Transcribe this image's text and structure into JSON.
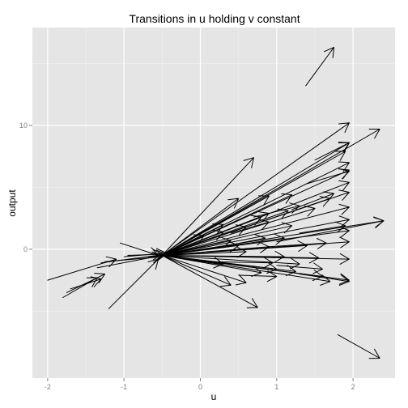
{
  "chart_data": {
    "type": "vector-field",
    "title": "Transitions in u holding v constant",
    "xlabel": "u",
    "ylabel": "output",
    "xlim": [
      -2.2,
      2.55
    ],
    "ylim": [
      -10.4,
      17.9
    ],
    "x_ticks": [
      -2,
      -1,
      0,
      1,
      2
    ],
    "x_tick_labels": [
      "-2",
      "-1",
      "0",
      "1",
      "2"
    ],
    "y_ticks": [
      0,
      10
    ],
    "y_tick_labels": [
      "0",
      "10"
    ],
    "panel_background": "#e5e5e5",
    "grid": true,
    "grid_color": "#ffffff",
    "arrow_color": "#000000",
    "arrows": [
      {
        "x0": 1.38,
        "y0": 13.2,
        "x1": 1.75,
        "y1": 16.3
      },
      {
        "x0": 1.8,
        "y0": -6.9,
        "x1": 2.35,
        "y1": -8.8
      },
      {
        "x0": -2.0,
        "y0": -2.5,
        "x1": -1.1,
        "y1": -0.8
      },
      {
        "x0": -1.8,
        "y0": -3.9,
        "x1": -1.35,
        "y1": -2.3
      },
      {
        "x0": -1.75,
        "y0": -3.5,
        "x1": -1.25,
        "y1": -2.0
      },
      {
        "x0": -1.7,
        "y0": -3.2,
        "x1": -1.3,
        "y1": -2.4
      },
      {
        "x0": -1.2,
        "y0": -4.8,
        "x1": -0.55,
        "y1": -0.8
      },
      {
        "x0": -1.05,
        "y0": 0.5,
        "x1": -0.55,
        "y1": -0.5
      },
      {
        "x0": -1.35,
        "y0": -1.5,
        "x1": -0.5,
        "y1": -0.5
      },
      {
        "x0": -1.3,
        "y0": -1.1,
        "x1": -0.45,
        "y1": -0.4
      },
      {
        "x0": -1.25,
        "y0": -1.0,
        "x1": -0.5,
        "y1": -0.6
      },
      {
        "x0": -1.0,
        "y0": -0.6,
        "x1": -0.45,
        "y1": -0.3
      },
      {
        "x0": -0.95,
        "y0": -0.5,
        "x1": -0.5,
        "y1": -0.4
      },
      {
        "x0": -0.5,
        "y0": -0.5,
        "x1": 0.7,
        "y1": 7.4
      },
      {
        "x0": -0.5,
        "y0": -0.5,
        "x1": 1.95,
        "y1": 10.2
      },
      {
        "x0": -0.5,
        "y0": -0.5,
        "x1": 2.35,
        "y1": 9.7
      },
      {
        "x0": -0.5,
        "y0": -0.5,
        "x1": 1.95,
        "y1": 8.6
      },
      {
        "x0": -0.5,
        "y0": -0.5,
        "x1": 1.9,
        "y1": 7.9
      },
      {
        "x0": -0.5,
        "y0": -0.5,
        "x1": 1.95,
        "y1": 7.0
      },
      {
        "x0": -0.5,
        "y0": -0.5,
        "x1": 1.95,
        "y1": 6.4
      },
      {
        "x0": -0.5,
        "y0": -0.5,
        "x1": 1.95,
        "y1": 5.4
      },
      {
        "x0": -0.5,
        "y0": -0.5,
        "x1": 1.95,
        "y1": 4.6
      },
      {
        "x0": -0.5,
        "y0": -0.5,
        "x1": 1.95,
        "y1": 3.4
      },
      {
        "x0": -0.5,
        "y0": -0.5,
        "x1": 1.95,
        "y1": 2.4
      },
      {
        "x0": -0.5,
        "y0": -0.5,
        "x1": 2.4,
        "y1": 2.3
      },
      {
        "x0": -0.5,
        "y0": -0.5,
        "x1": 1.95,
        "y1": 1.5
      },
      {
        "x0": -0.5,
        "y0": -0.5,
        "x1": 1.95,
        "y1": 0.6
      },
      {
        "x0": -0.5,
        "y0": -0.5,
        "x1": 1.95,
        "y1": -0.8
      },
      {
        "x0": -0.5,
        "y0": -0.5,
        "x1": 1.95,
        "y1": -2.5
      },
      {
        "x0": -0.5,
        "y0": -0.5,
        "x1": 0.75,
        "y1": -4.7
      },
      {
        "x0": -0.5,
        "y0": -0.5,
        "x1": 0.5,
        "y1": 4.1
      },
      {
        "x0": -0.5,
        "y0": -0.5,
        "x1": 0.9,
        "y1": 4.3
      },
      {
        "x0": -0.5,
        "y0": -0.5,
        "x1": 1.2,
        "y1": 4.4
      },
      {
        "x0": -0.5,
        "y0": -0.5,
        "x1": 1.7,
        "y1": 4.1
      },
      {
        "x0": -0.5,
        "y0": -0.5,
        "x1": 0.9,
        "y1": 2.9
      },
      {
        "x0": -0.5,
        "y0": -0.5,
        "x1": 1.15,
        "y1": 3.1
      },
      {
        "x0": -0.5,
        "y0": -0.5,
        "x1": 1.5,
        "y1": 3.3
      },
      {
        "x0": -0.5,
        "y0": -0.5,
        "x1": 0.8,
        "y1": 2.6
      },
      {
        "x0": -0.5,
        "y0": -0.5,
        "x1": 0.3,
        "y1": 2.0
      },
      {
        "x0": -0.5,
        "y0": -0.5,
        "x1": 0.05,
        "y1": 1.1
      },
      {
        "x0": -0.5,
        "y0": -0.5,
        "x1": 0.3,
        "y1": 1.4
      },
      {
        "x0": -0.5,
        "y0": -0.5,
        "x1": 0.6,
        "y1": 1.8
      },
      {
        "x0": -0.5,
        "y0": -0.5,
        "x1": 1.2,
        "y1": 1.9
      },
      {
        "x0": -0.5,
        "y0": -0.5,
        "x1": 0.4,
        "y1": 0.7
      },
      {
        "x0": -0.5,
        "y0": -0.5,
        "x1": 1.1,
        "y1": 0.9
      },
      {
        "x0": -0.5,
        "y0": -0.5,
        "x1": 1.4,
        "y1": 0.3
      },
      {
        "x0": -0.5,
        "y0": -0.5,
        "x1": 0.9,
        "y1": 0.2
      },
      {
        "x0": -0.5,
        "y0": -0.5,
        "x1": 0.6,
        "y1": -0.2
      },
      {
        "x0": -0.5,
        "y0": -0.5,
        "x1": 1.55,
        "y1": -0.7
      },
      {
        "x0": -0.5,
        "y0": -0.5,
        "x1": 1.3,
        "y1": -1.2
      },
      {
        "x0": -0.5,
        "y0": -0.5,
        "x1": 1.0,
        "y1": -1.6
      },
      {
        "x0": -0.5,
        "y0": -0.5,
        "x1": 0.8,
        "y1": -1.9
      },
      {
        "x0": -0.5,
        "y0": -0.5,
        "x1": 1.25,
        "y1": -1.8
      },
      {
        "x0": -0.5,
        "y0": -0.5,
        "x1": 0.6,
        "y1": -2.7
      },
      {
        "x0": -0.5,
        "y0": -0.5,
        "x1": 0.4,
        "y1": -2.9
      },
      {
        "x0": -0.5,
        "y0": -0.5,
        "x1": 1.6,
        "y1": -2.2
      },
      {
        "x0": -0.5,
        "y0": -0.5,
        "x1": 1.7,
        "y1": -2.6
      },
      {
        "x0": -0.5,
        "y0": -0.5,
        "x1": 0.3,
        "y1": -1.2
      },
      {
        "x0": -0.5,
        "y0": -0.5,
        "x1": 0.5,
        "y1": 0.3
      },
      {
        "x0": -0.5,
        "y0": -0.5,
        "x1": 1.1,
        "y1": -0.6
      },
      {
        "x0": 0.4,
        "y0": 1.3,
        "x1": 0.9,
        "y1": 2.2
      },
      {
        "x0": 0.2,
        "y0": 0.1,
        "x1": 0.85,
        "y1": 0.9
      },
      {
        "x0": 0.7,
        "y0": 2.6,
        "x1": 1.3,
        "y1": 3.5
      },
      {
        "x0": 1.2,
        "y0": 3.2,
        "x1": 1.75,
        "y1": 4.5
      },
      {
        "x0": 0.9,
        "y0": 0.2,
        "x1": 1.65,
        "y1": 0.5
      },
      {
        "x0": 1.3,
        "y0": 1.3,
        "x1": 1.9,
        "y1": 1.9
      },
      {
        "x0": 0.1,
        "y0": -1.0,
        "x1": 0.95,
        "y1": -1.1
      },
      {
        "x0": 1.0,
        "y0": -1.3,
        "x1": 1.6,
        "y1": -1.6
      },
      {
        "x0": 0.5,
        "y0": -2.1,
        "x1": 1.0,
        "y1": -2.2
      },
      {
        "x0": 1.3,
        "y0": -2.0,
        "x1": 1.95,
        "y1": -2.6
      },
      {
        "x0": 1.4,
        "y0": 5.3,
        "x1": 1.95,
        "y1": 6.3
      },
      {
        "x0": 1.5,
        "y0": 7.2,
        "x1": 1.95,
        "y1": 8.6
      },
      {
        "x0": 1.0,
        "y0": 0.6,
        "x1": 2.4,
        "y1": 2.3
      }
    ]
  }
}
